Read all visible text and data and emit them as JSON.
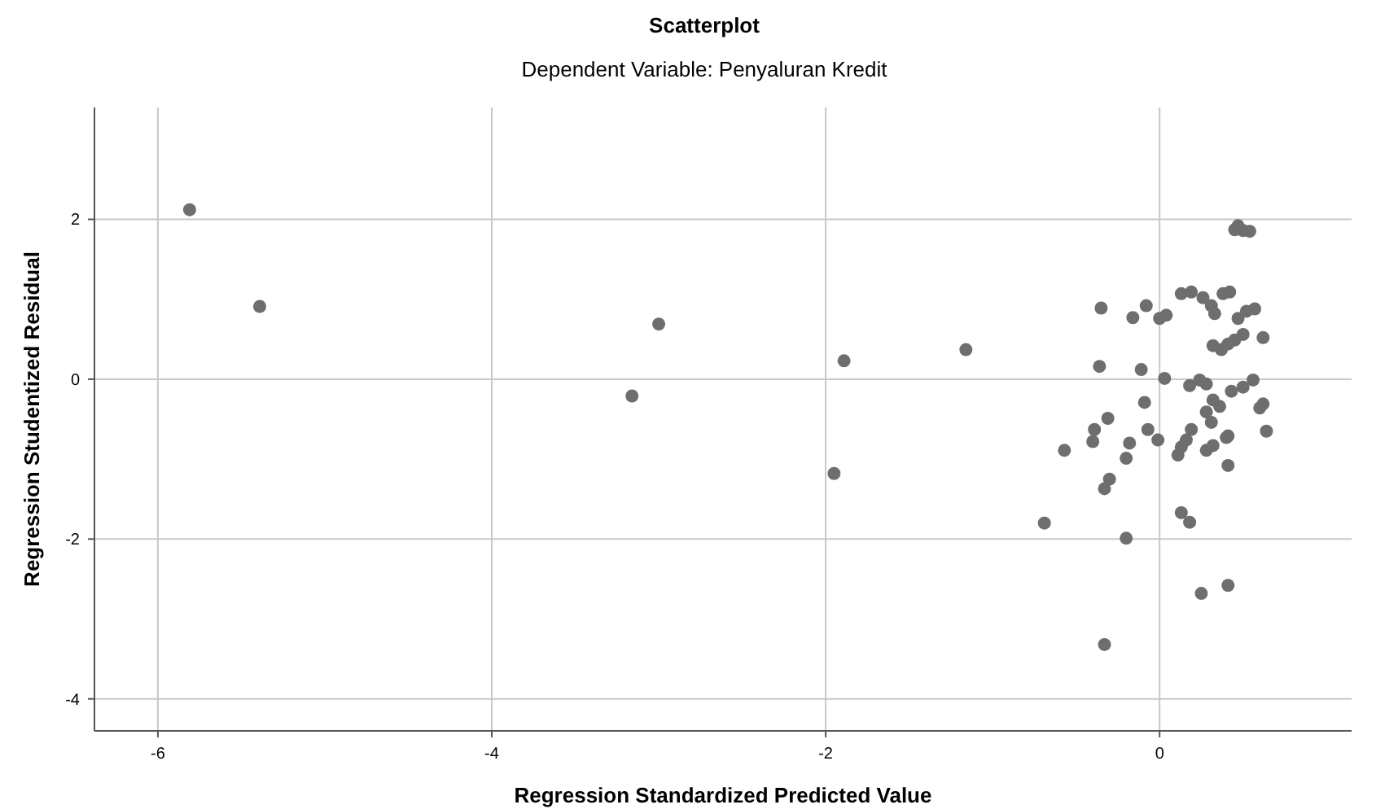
{
  "chart_data": {
    "type": "scatter",
    "title": "Scatterplot",
    "subtitle": "Dependent Variable: Penyaluran Kredit",
    "xlabel": "Regression Standardized Predicted Value",
    "ylabel": "Regression Studentized Residual",
    "xlim": [
      -6.38,
      1.15
    ],
    "ylim": [
      -4.4,
      3.4
    ],
    "xticks": [
      -6,
      -4,
      -2,
      0
    ],
    "yticks": [
      -4,
      -2,
      0,
      2
    ],
    "grid": true,
    "marker": "circle",
    "series": [
      {
        "color": "#6e6e6e",
        "x": [
          -5.81,
          -5.39,
          -3.0,
          -3.16,
          -1.89,
          -1.16,
          -1.95,
          -0.33,
          0.45,
          0.5,
          0.54,
          0.47,
          0.13,
          0.19,
          0.26,
          0.31,
          0.33,
          0.38,
          0.42,
          -0.35,
          -0.16,
          -0.08,
          0.0,
          0.04,
          0.47,
          0.52,
          0.57,
          0.5,
          0.45,
          0.41,
          0.32,
          0.37,
          0.62,
          -0.36,
          -0.11,
          0.03,
          0.18,
          0.24,
          0.28,
          0.32,
          0.36,
          0.28,
          0.31,
          0.43,
          0.5,
          0.56,
          0.62,
          0.64,
          -0.09,
          -0.31,
          -0.39,
          -0.07,
          0.19,
          0.41,
          -0.4,
          -0.57,
          -0.18,
          -0.2,
          -0.01,
          0.16,
          0.13,
          0.11,
          0.28,
          0.32,
          0.4,
          0.41,
          0.6,
          -0.3,
          -0.33,
          -0.69,
          0.13,
          0.18,
          -0.2,
          0.25,
          0.41
        ],
        "values": [
          2.12,
          0.91,
          0.69,
          -0.21,
          0.23,
          0.37,
          -1.18,
          -3.32,
          1.87,
          1.86,
          1.85,
          1.92,
          1.07,
          1.09,
          1.02,
          0.92,
          0.82,
          1.07,
          1.09,
          0.89,
          0.77,
          0.92,
          0.76,
          0.8,
          0.76,
          0.85,
          0.88,
          0.56,
          0.49,
          0.44,
          0.42,
          0.37,
          0.52,
          0.16,
          0.12,
          0.01,
          -0.08,
          -0.01,
          -0.06,
          -0.26,
          -0.34,
          -0.41,
          -0.54,
          -0.15,
          -0.1,
          -0.01,
          -0.31,
          -0.65,
          -0.29,
          -0.49,
          -0.63,
          -0.63,
          -0.63,
          -0.71,
          -0.78,
          -0.89,
          -0.8,
          -0.99,
          -0.76,
          -0.76,
          -0.85,
          -0.95,
          -0.89,
          -0.83,
          -0.73,
          -1.08,
          -0.36,
          -1.25,
          -1.37,
          -1.8,
          -1.67,
          -1.79,
          -1.99,
          -2.68,
          -2.58
        ]
      }
    ]
  }
}
